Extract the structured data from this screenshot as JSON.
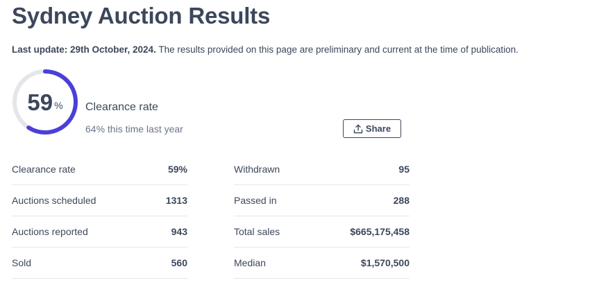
{
  "header": {
    "title": "Sydney Auction Results",
    "update_label": "Last update: 29th October, 2024.",
    "update_text": " The results provided on this page are preliminary and current at the time of publication."
  },
  "summary": {
    "clearance_value": "59",
    "clearance_unit": "%",
    "clearance_fraction": 0.59,
    "clearance_title": "Clearance rate",
    "last_year_text": "64% this time last year"
  },
  "share": {
    "label": "Share",
    "icon": "share-upload-icon"
  },
  "stats": {
    "left": [
      {
        "label": "Clearance rate",
        "value": "59%"
      },
      {
        "label": "Auctions scheduled",
        "value": "1313"
      },
      {
        "label": "Auctions reported",
        "value": "943"
      },
      {
        "label": "Sold",
        "value": "560"
      }
    ],
    "right": [
      {
        "label": "Withdrawn",
        "value": "95"
      },
      {
        "label": "Passed in",
        "value": "288"
      },
      {
        "label": "Total sales",
        "value": "$665,175,458"
      },
      {
        "label": "Median",
        "value": "$1,570,500"
      }
    ]
  },
  "colors": {
    "gauge_fill": "#4b3fd9",
    "gauge_track": "#e4e6ea",
    "text": "#3c475b",
    "muted": "#6b7587"
  }
}
